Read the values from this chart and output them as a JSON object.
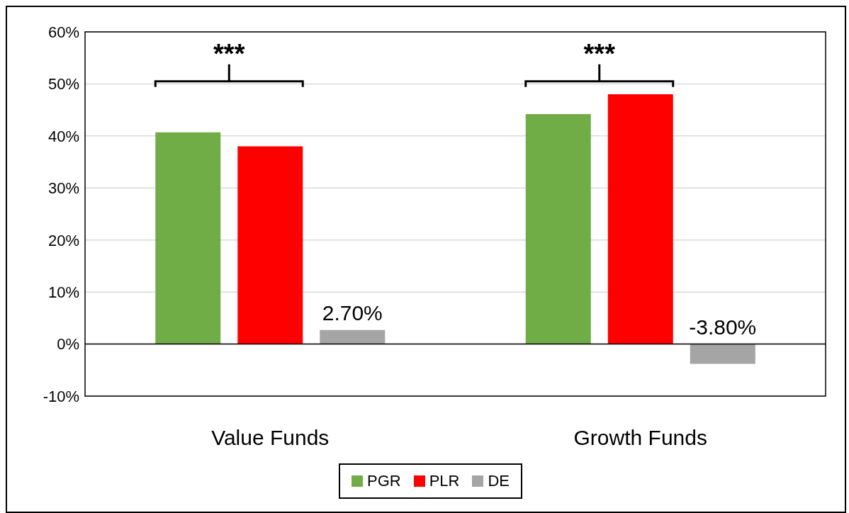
{
  "chart_data": {
    "type": "bar",
    "categories": [
      "Value Funds",
      "Growth Funds"
    ],
    "series": [
      {
        "name": "PGR",
        "color": "#70ad47",
        "values": [
          40.7,
          44.2
        ]
      },
      {
        "name": "PLR",
        "color": "#ff0000",
        "values": [
          38.0,
          48.0
        ]
      },
      {
        "name": "DE",
        "color": "#a5a5a5",
        "values": [
          2.7,
          -3.8
        ],
        "value_labels": [
          "2.70%",
          "-3.80%"
        ]
      }
    ],
    "ylim": [
      -10,
      60
    ],
    "yticks": [
      {
        "value": -10,
        "label": "-10%"
      },
      {
        "value": 0,
        "label": "0%"
      },
      {
        "value": 10,
        "label": "10%"
      },
      {
        "value": 20,
        "label": "20%"
      },
      {
        "value": 30,
        "label": "30%"
      },
      {
        "value": 40,
        "label": "40%"
      },
      {
        "value": 50,
        "label": "50%"
      },
      {
        "value": 60,
        "label": "60%"
      }
    ],
    "grid": "y",
    "legend": "bottom",
    "annotations": [
      "***",
      "***"
    ]
  }
}
